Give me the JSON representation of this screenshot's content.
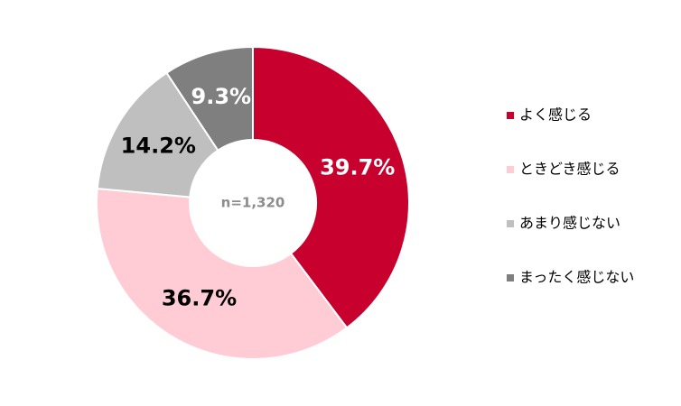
{
  "chart_data": {
    "type": "donut",
    "categories": [
      "よく感じる",
      "ときどき感じる",
      "あまり感じない",
      "まったく感じない"
    ],
    "values": [
      39.7,
      36.7,
      14.2,
      9.3
    ],
    "value_labels": [
      "39.7%",
      "36.7%",
      "14.2%",
      "9.3%"
    ],
    "colors": [
      "#c8002d",
      "#ffccd6",
      "#bfbfbf",
      "#7f7f7f"
    ],
    "label_colors": [
      "#ffffff",
      "#000000",
      "#000000",
      "#ffffff"
    ],
    "annotation": "n=1,320",
    "legend": "right"
  }
}
